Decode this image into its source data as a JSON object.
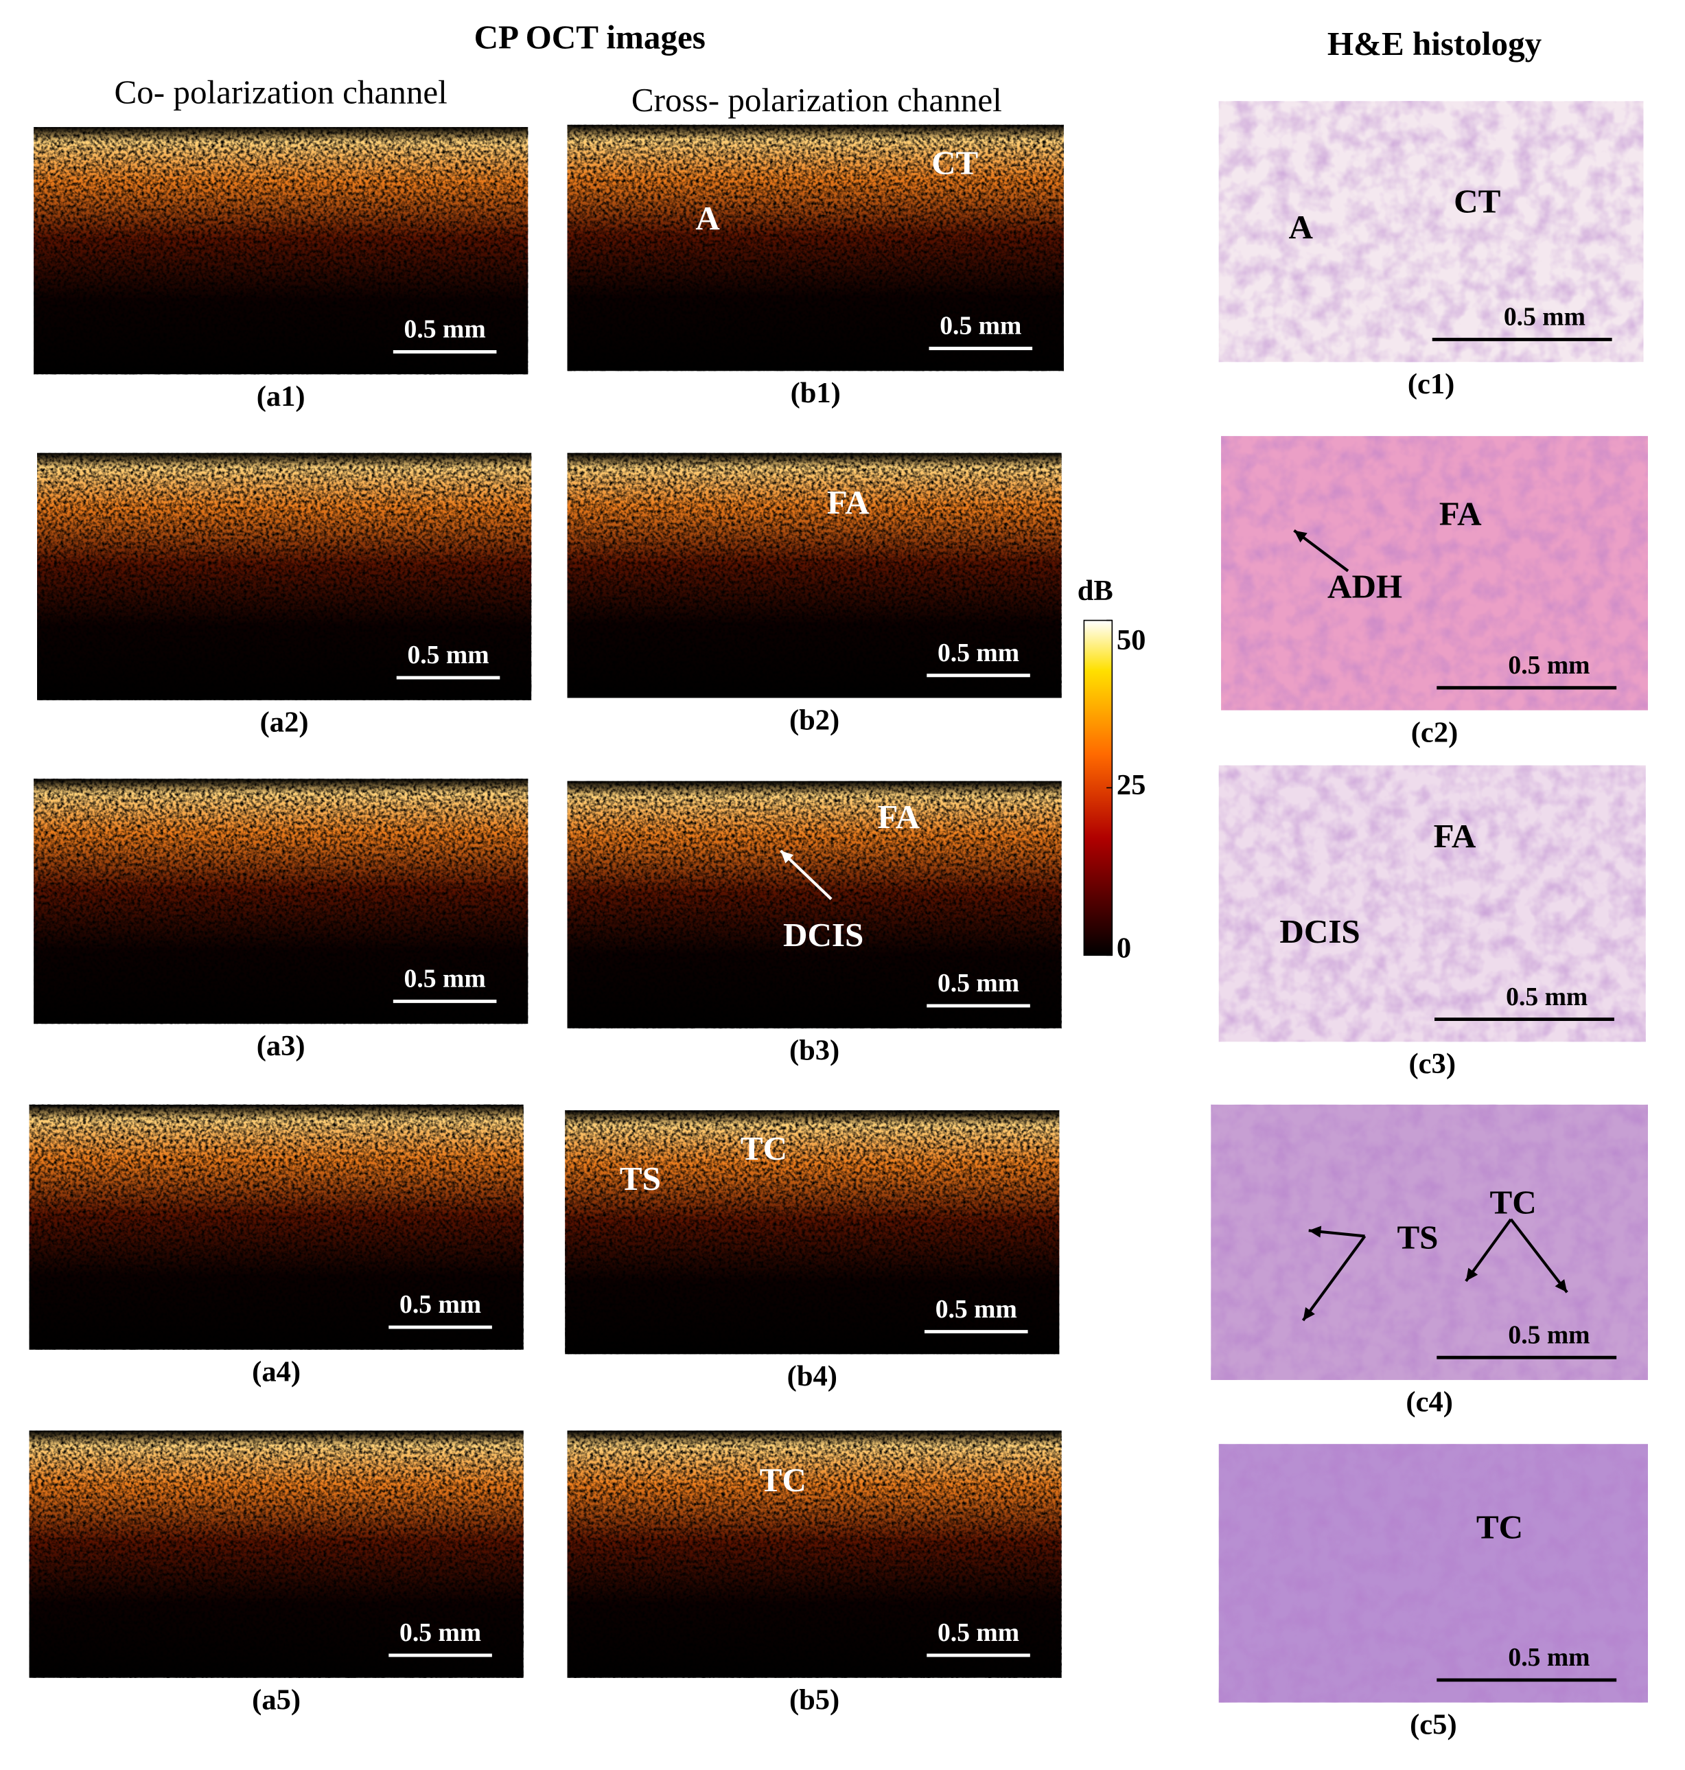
{
  "header": {
    "oct_title": "CP  OCT images",
    "histology_title": "H&E histology",
    "co_channel": "Co- polarization channel",
    "cross_channel": "Cross- polarization channel"
  },
  "panels": [
    {
      "label": "(a1)",
      "scale_bar": "0.5 mm",
      "annotations": []
    },
    {
      "label": "(a2)",
      "scale_bar": "0.5 mm",
      "annotations": []
    },
    {
      "label": "(a3)",
      "scale_bar": "0.5 mm",
      "annotations": []
    },
    {
      "label": "(a4)",
      "scale_bar": "0.5 mm",
      "annotations": []
    },
    {
      "label": "(a5)",
      "scale_bar": "0.5 mm",
      "annotations": []
    },
    {
      "label": "(b1)",
      "scale_bar": "0.5 mm",
      "annotations": [
        "CT",
        "A"
      ]
    },
    {
      "label": "(b2)",
      "scale_bar": "0.5 mm",
      "annotations": [
        "FA"
      ]
    },
    {
      "label": "(b3)",
      "scale_bar": "0.5 mm",
      "annotations": [
        "FA",
        "DCIS"
      ]
    },
    {
      "label": "(b4)",
      "scale_bar": "0.5 mm",
      "annotations": [
        "TS",
        "TC"
      ]
    },
    {
      "label": "(b5)",
      "scale_bar": "0.5 mm",
      "annotations": [
        "TC"
      ]
    },
    {
      "label": "(c1)",
      "scale_bar": "0.5 mm",
      "annotations": [
        "A",
        "CT"
      ]
    },
    {
      "label": "(c2)",
      "scale_bar": "0.5 mm",
      "annotations": [
        "FA",
        "ADH"
      ]
    },
    {
      "label": "(c3)",
      "scale_bar": "0.5 mm",
      "annotations": [
        "FA",
        "DCIS"
      ]
    },
    {
      "label": "(c4)",
      "scale_bar": "0.5 mm",
      "annotations": [
        "TS",
        "TC"
      ]
    },
    {
      "label": "(c5)",
      "scale_bar": "0.5 mm",
      "annotations": [
        "TC"
      ]
    }
  ],
  "colorbar": {
    "label": "dB",
    "ticks": [
      0,
      25,
      50
    ]
  }
}
